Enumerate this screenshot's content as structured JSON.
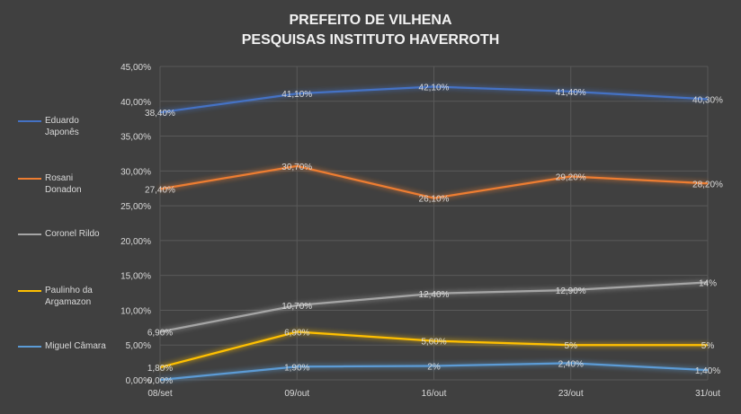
{
  "chart_data": {
    "type": "line",
    "title": "PREFEITO DE VILHENA",
    "subtitle": "PESQUISAS INSTITUTO HAVERROTH",
    "xlabel": "",
    "ylabel": "",
    "categories": [
      "08/set",
      "09/out",
      "16/out",
      "23/out",
      "31/out"
    ],
    "ylim": [
      0,
      45
    ],
    "y_ticks": [
      0,
      5,
      10,
      15,
      20,
      25,
      30,
      35,
      40,
      45
    ],
    "y_tick_labels": [
      "0,00%",
      "5,00%",
      "10,00%",
      "15,00%",
      "20,00%",
      "25,00%",
      "30,00%",
      "35,00%",
      "40,00%",
      "45,00%"
    ],
    "grid": true,
    "legend_position": "left",
    "series": [
      {
        "name": "Eduardo Japonês",
        "color": "#4472c4",
        "values": [
          38.4,
          41.1,
          42.1,
          41.4,
          40.3
        ],
        "labels": [
          "38,40%",
          "41,10%",
          "42,10%",
          "41,40%",
          "40,30%"
        ]
      },
      {
        "name": "Rosani Donadon",
        "color": "#ed7d31",
        "values": [
          27.4,
          30.7,
          26.1,
          29.2,
          28.2
        ],
        "labels": [
          "27,40%",
          "30,70%",
          "26,10%",
          "29,20%",
          "28,20%"
        ]
      },
      {
        "name": "Coronel Rildo",
        "color": "#a5a5a5",
        "values": [
          6.9,
          10.7,
          12.4,
          12.9,
          14
        ],
        "labels": [
          "6,90%",
          "10,70%",
          "12,40%",
          "12,90%",
          "14%"
        ]
      },
      {
        "name": "Paulinho da Argamazon",
        "color": "#ffc000",
        "values": [
          1.8,
          6.9,
          5.6,
          5,
          5
        ],
        "labels": [
          "1,80%",
          "6,90%",
          "5,60%",
          "5%",
          "5%"
        ]
      },
      {
        "name": "Miguel Câmara",
        "color": "#5b9bd5",
        "values": [
          0,
          1.9,
          2,
          2.4,
          1.4
        ],
        "labels": [
          "0,00%",
          "1,90%",
          "2%",
          "2,40%",
          "1,40%"
        ]
      }
    ]
  }
}
